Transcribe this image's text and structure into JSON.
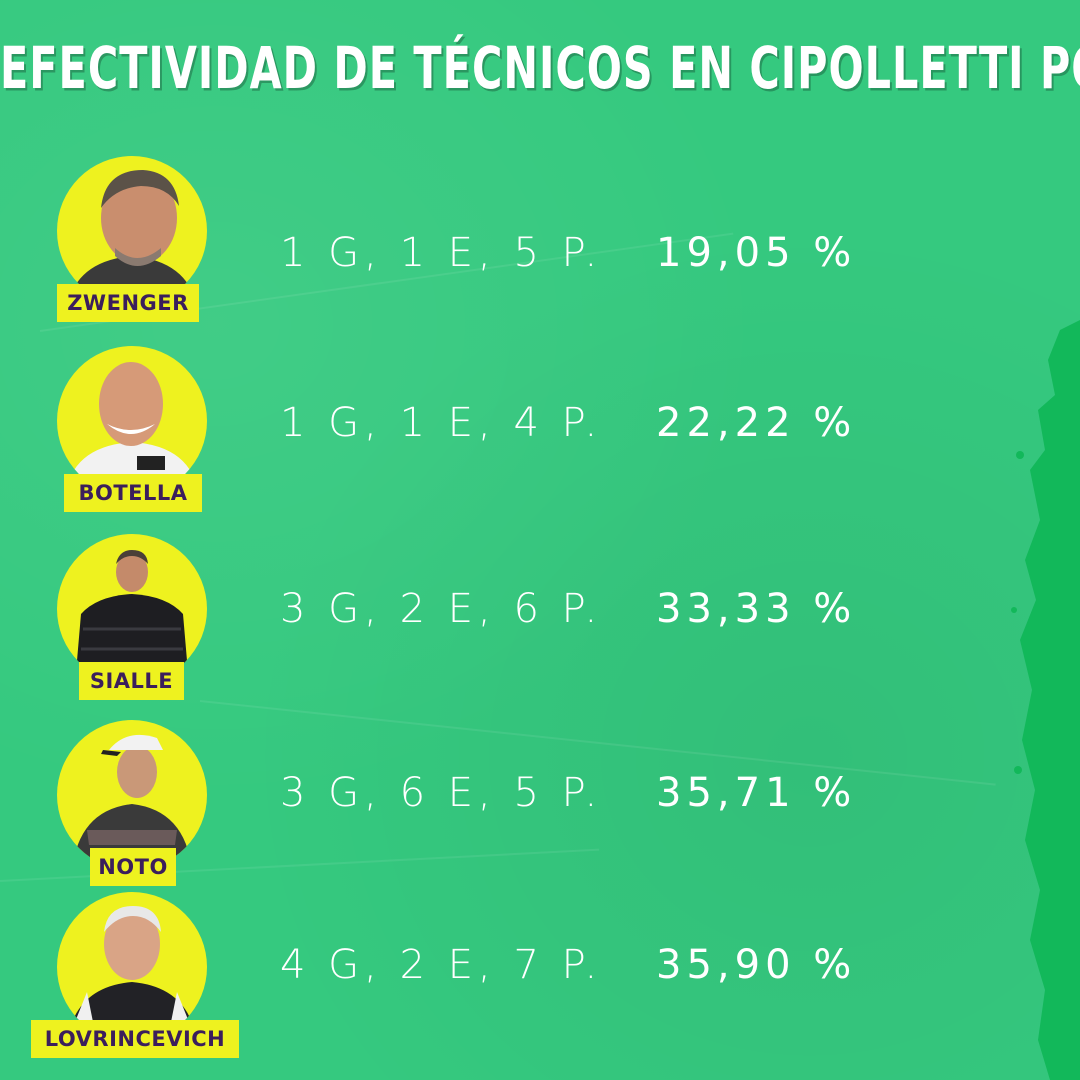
{
  "title": "EFECTIVIDAD DE TÉCNICOS EN CIPOLLETTI POR FEDERAL A",
  "colors": {
    "background": "#35c97f",
    "accent_yellow": "#eef21f",
    "name_text": "#3b1e5c",
    "text": "#ffffff"
  },
  "coaches": [
    {
      "name": "ZWENGER",
      "record": "1 G, 1 E, 5 P.",
      "percentage": "19,05 %"
    },
    {
      "name": "BOTELLA",
      "record": "1 G, 1 E, 4 P.",
      "percentage": "22,22 %"
    },
    {
      "name": "SIALLE",
      "record": "3 G, 2 E, 6 P.",
      "percentage": "33,33 %"
    },
    {
      "name": "NOTO",
      "record": "3 G, 6 E, 5 P.",
      "percentage": "35,71 %"
    },
    {
      "name": "LOVRINCEVICH",
      "record": "4 G, 2 E, 7 P.",
      "percentage": "35,90 %"
    }
  ]
}
